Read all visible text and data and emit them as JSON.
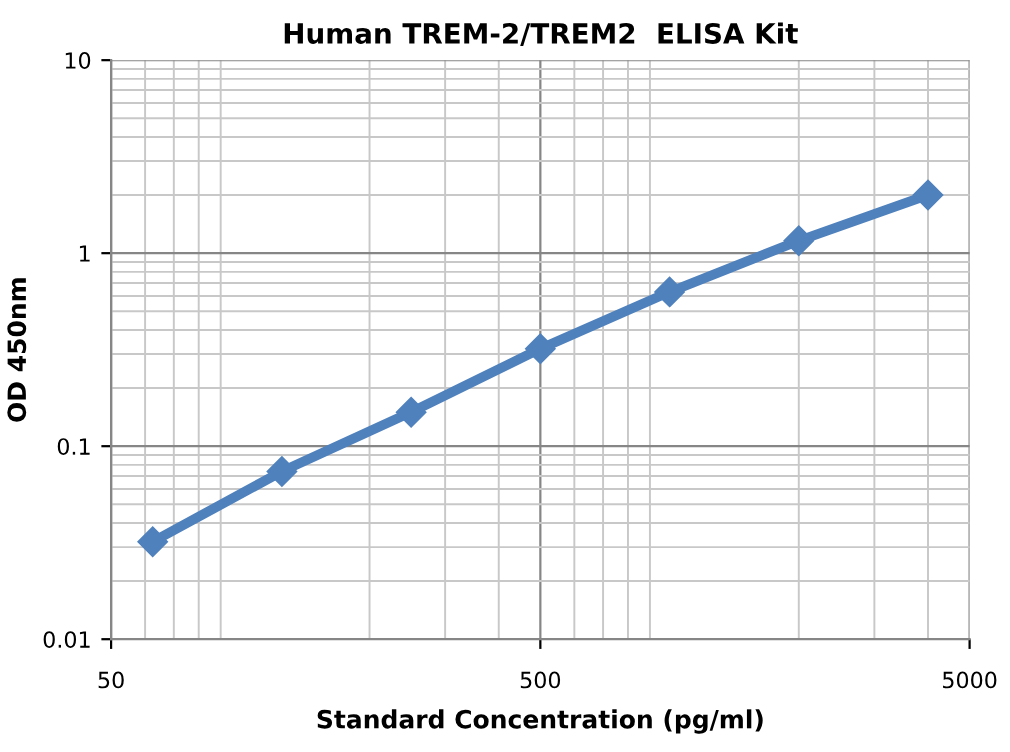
{
  "chart_data": {
    "type": "line",
    "title": "Human TREM-2/TREM2  ELISA Kit",
    "xlabel": "Standard Concentration (pg/ml)",
    "ylabel": "OD 450nm",
    "x": [
      62.5,
      125,
      250,
      500,
      1000,
      2000,
      4000
    ],
    "series": [
      {
        "color": "#4f81bd",
        "values": [
          0.032,
          0.074,
          0.15,
          0.32,
          0.63,
          1.16,
          2.0
        ]
      }
    ],
    "log": "xy",
    "xlim": [
      50,
      5000
    ],
    "xticks": [
      50,
      500,
      5000
    ],
    "ylim": [
      0.01,
      10
    ],
    "yticks": [
      {
        "value": 0.01,
        "label": "0.01"
      },
      {
        "value": 0.1,
        "label": "0.1"
      },
      1,
      10
    ],
    "grid": true,
    "marker": "diamond",
    "line_style": "solid"
  }
}
